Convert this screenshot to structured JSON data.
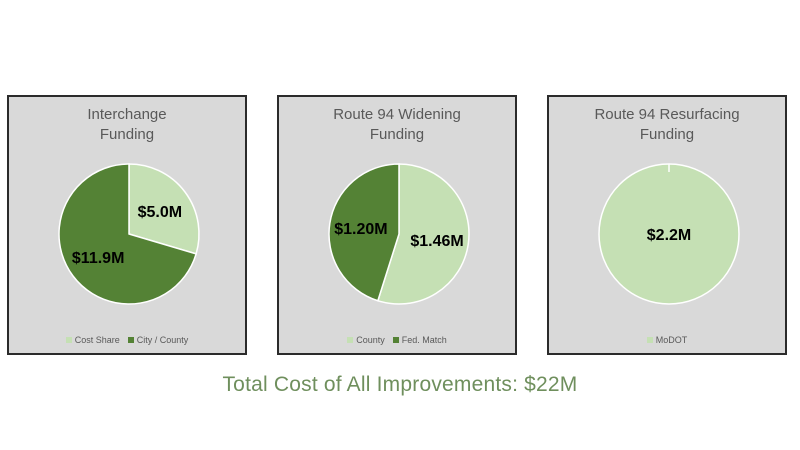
{
  "colors": {
    "light_green": "#c5e0b4",
    "dark_green": "#548235",
    "label_text": "#000000"
  },
  "chart_data": [
    {
      "type": "pie",
      "title_lines": [
        "Interchange",
        "Funding"
      ],
      "slices": [
        {
          "name": "Cost Share",
          "value": 5.0,
          "label": "$5.0M",
          "color": "#c5e0b4"
        },
        {
          "name": "City / County",
          "value": 11.9,
          "label": "$11.9M",
          "color": "#548235"
        }
      ]
    },
    {
      "type": "pie",
      "title_lines": [
        "Route 94 Widening",
        "Funding"
      ],
      "slices": [
        {
          "name": "County",
          "value": 1.46,
          "label": "$1.46M",
          "color": "#c5e0b4"
        },
        {
          "name": "Fed. Match",
          "value": 1.2,
          "label": "$1.20M",
          "color": "#548235"
        }
      ]
    },
    {
      "type": "pie",
      "title_lines": [
        "Route 94 Resurfacing",
        "Funding"
      ],
      "slices": [
        {
          "name": "MoDOT",
          "value": 2.2,
          "label": "$2.2M",
          "color": "#c5e0b4"
        }
      ]
    }
  ],
  "footer": {
    "total_text": "Total Cost of All Improvements: $22M"
  }
}
